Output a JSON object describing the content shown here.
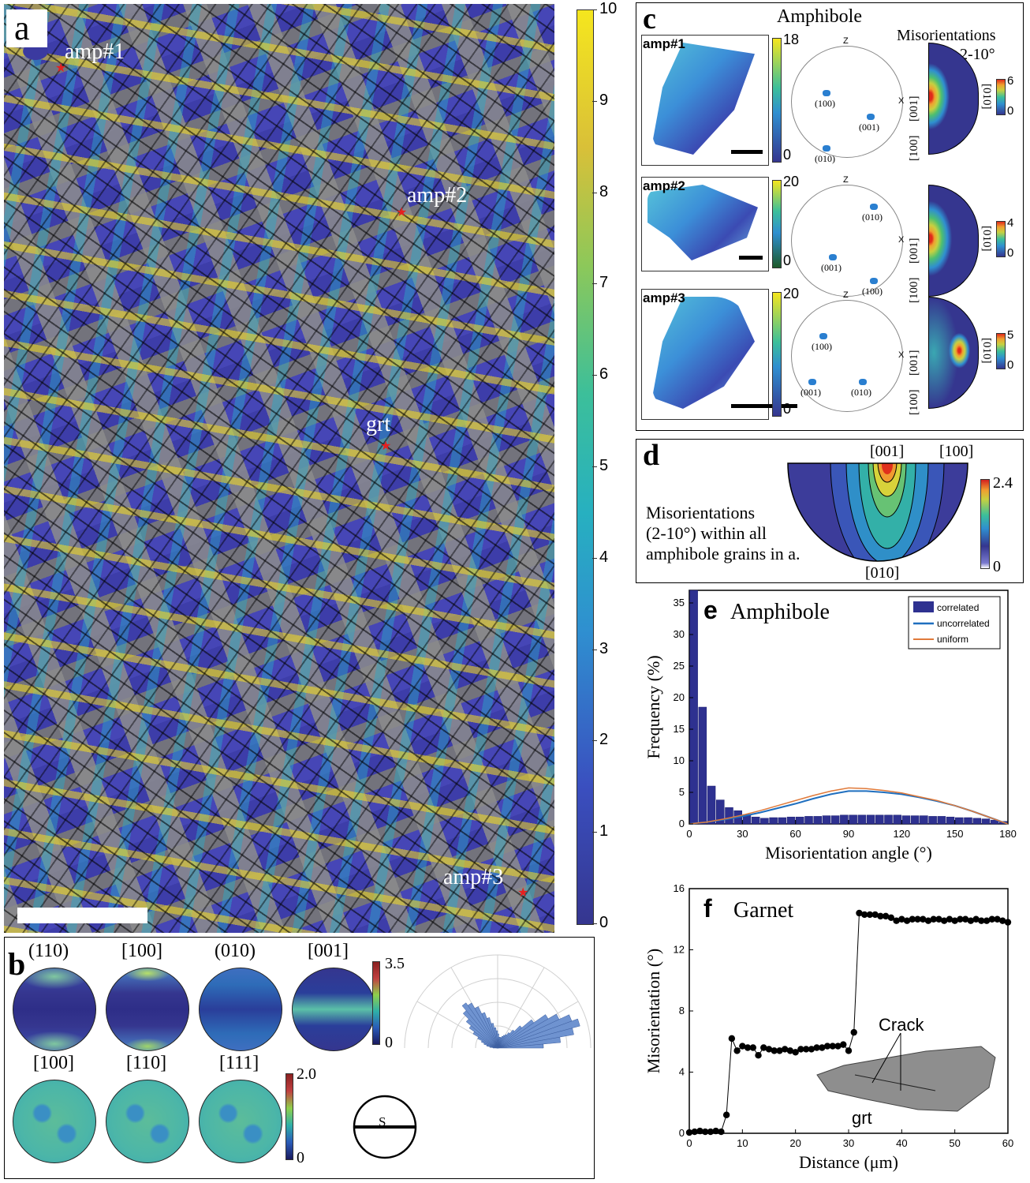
{
  "panel_a": {
    "label": "a",
    "markers": [
      "amp#1",
      "amp#2",
      "grt",
      "amp#3"
    ],
    "colorbar_ticks": [
      "10",
      "9",
      "8",
      "7",
      "6",
      "5",
      "4",
      "3",
      "2",
      "1",
      "0"
    ]
  },
  "panel_b": {
    "label": "b",
    "top_titles": [
      "(110)",
      "[100]",
      "(010)",
      "[001]"
    ],
    "top_scale_max": "3.5",
    "top_scale_min": "0",
    "bottom_titles": [
      "[100]",
      "[110]",
      "[111]"
    ],
    "bottom_scale_max": "2.0",
    "bottom_scale_min": "0",
    "s_symbol": "S"
  },
  "panel_c": {
    "label": "c",
    "title": "Amphibole",
    "mis_title": "Misorientations",
    "mis_range": "2-10°",
    "grains": [
      {
        "name": "amp#1",
        "cb_max": "18",
        "cb_min": "0",
        "poles": [
          "(100)",
          "(001)",
          "(010)"
        ],
        "mis_max": "6",
        "mis_min": "0"
      },
      {
        "name": "amp#2",
        "cb_max": "20",
        "cb_min": "0",
        "poles": [
          "(010)",
          "(001)",
          "(100)"
        ],
        "mis_max": "4",
        "mis_min": "0"
      },
      {
        "name": "amp#3",
        "cb_max": "20",
        "cb_min": "0",
        "poles": [
          "(100)",
          "(001)",
          "(010)"
        ],
        "mis_max": "5",
        "mis_min": "0"
      }
    ],
    "axis_z": "Z",
    "axis_x": "X",
    "dir_labels": [
      "[001]",
      "[010]",
      "[100]"
    ]
  },
  "panel_d": {
    "label": "d",
    "top_left": "[001]",
    "top_right": "[100]",
    "bottom": "[010]",
    "text1": "Misorientations",
    "text2": "(2-10°) within all",
    "text3": "amphibole grains in a.",
    "cb_max": "2.4",
    "cb_min": "0"
  },
  "panel_e": {
    "label": "e",
    "title": "Amphibole",
    "legend": [
      "correlated",
      "uncorrelated",
      "uniform"
    ]
  },
  "panel_f": {
    "label": "f",
    "title": "Garnet",
    "crack_label": "Crack",
    "grt_label": "grt"
  },
  "chart_data": [
    {
      "type": "bar",
      "title": "Amphibole",
      "xlabel": "Misorientation angle (°)",
      "ylabel": "Frequency (%)",
      "xlim": [
        0,
        180
      ],
      "ylim": [
        0,
        37
      ],
      "xticks": [
        "0",
        "30",
        "60",
        "90",
        "120",
        "150",
        "180"
      ],
      "yticks": [
        "0",
        "5",
        "10",
        "15",
        "20",
        "25",
        "30",
        "35"
      ],
      "bin_width": 5,
      "series": [
        {
          "name": "correlated",
          "kind": "bar",
          "x": [
            2.5,
            7.5,
            12.5,
            17.5,
            22.5,
            27.5,
            32.5,
            37.5,
            42.5,
            47.5,
            52.5,
            57.5,
            62.5,
            67.5,
            72.5,
            77.5,
            82.5,
            87.5,
            92.5,
            97.5,
            102.5,
            107.5,
            112.5,
            117.5,
            122.5,
            127.5,
            132.5,
            137.5,
            142.5,
            147.5,
            152.5,
            157.5,
            162.5,
            167.5,
            172.5,
            177.5
          ],
          "values": [
            37,
            18.5,
            6,
            3.8,
            2.6,
            2.1,
            1.5,
            1.1,
            0.9,
            1.0,
            1.0,
            1.1,
            1.1,
            1.2,
            1.2,
            1.3,
            1.3,
            1.4,
            1.4,
            1.4,
            1.4,
            1.4,
            1.4,
            1.4,
            1.3,
            1.3,
            1.3,
            1.2,
            1.2,
            1.1,
            1.0,
            1.0,
            0.9,
            0.8,
            0.6,
            0.4
          ]
        },
        {
          "name": "uncorrelated",
          "kind": "line",
          "x": [
            0,
            10,
            20,
            30,
            40,
            50,
            60,
            70,
            80,
            90,
            100,
            110,
            120,
            130,
            140,
            150,
            160,
            170,
            180
          ],
          "values": [
            0,
            0.3,
            0.7,
            1.2,
            1.8,
            2.5,
            3.2,
            4.0,
            4.7,
            5.2,
            5.2,
            5.0,
            4.7,
            4.2,
            3.6,
            2.9,
            2.0,
            1.0,
            0
          ]
        },
        {
          "name": "uniform",
          "kind": "line",
          "x": [
            0,
            10,
            20,
            30,
            40,
            50,
            60,
            70,
            80,
            90,
            100,
            110,
            120,
            130,
            140,
            150,
            160,
            170,
            180
          ],
          "values": [
            0,
            0.3,
            0.8,
            1.4,
            2.1,
            2.9,
            3.7,
            4.5,
            5.2,
            5.7,
            5.6,
            5.3,
            4.9,
            4.3,
            3.7,
            2.9,
            2.0,
            1.0,
            0
          ]
        }
      ]
    },
    {
      "type": "line",
      "title": "Garnet",
      "xlabel": "Distance (μm)",
      "ylabel": "Misorientation (°)",
      "xlim": [
        0,
        60
      ],
      "ylim": [
        0,
        16
      ],
      "xticks": [
        "0",
        "10",
        "20",
        "30",
        "40",
        "50",
        "60"
      ],
      "yticks": [
        "0",
        "4",
        "8",
        "12",
        "16"
      ],
      "series": [
        {
          "name": "",
          "x": [
            0,
            1,
            2,
            3,
            4,
            5,
            6,
            7,
            8,
            9,
            10,
            11,
            12,
            13,
            14,
            15,
            16,
            17,
            18,
            19,
            20,
            21,
            22,
            23,
            24,
            25,
            26,
            27,
            28,
            29,
            30,
            31,
            32,
            33,
            34,
            35,
            36,
            37,
            38,
            39,
            40,
            41,
            42,
            43,
            44,
            45,
            46,
            47,
            48,
            49,
            50,
            51,
            52,
            53,
            54,
            55,
            56,
            57,
            58,
            59,
            60
          ],
          "values": [
            0.05,
            0.1,
            0.15,
            0.1,
            0.1,
            0.15,
            0.1,
            1.2,
            6.2,
            5.4,
            5.7,
            5.6,
            5.6,
            5.1,
            5.6,
            5.5,
            5.4,
            5.4,
            5.5,
            5.4,
            5.3,
            5.5,
            5.5,
            5.5,
            5.6,
            5.6,
            5.7,
            5.7,
            5.7,
            5.8,
            5.4,
            6.6,
            14.4,
            14.3,
            14.3,
            14.3,
            14.2,
            14.2,
            14.1,
            13.9,
            14.0,
            13.9,
            14.0,
            14.0,
            14.0,
            13.9,
            14.0,
            14.0,
            13.9,
            14.0,
            13.9,
            14.0,
            14.0,
            13.9,
            14.0,
            13.9,
            13.9,
            14.0,
            14.0,
            13.9,
            13.8
          ]
        }
      ]
    }
  ]
}
